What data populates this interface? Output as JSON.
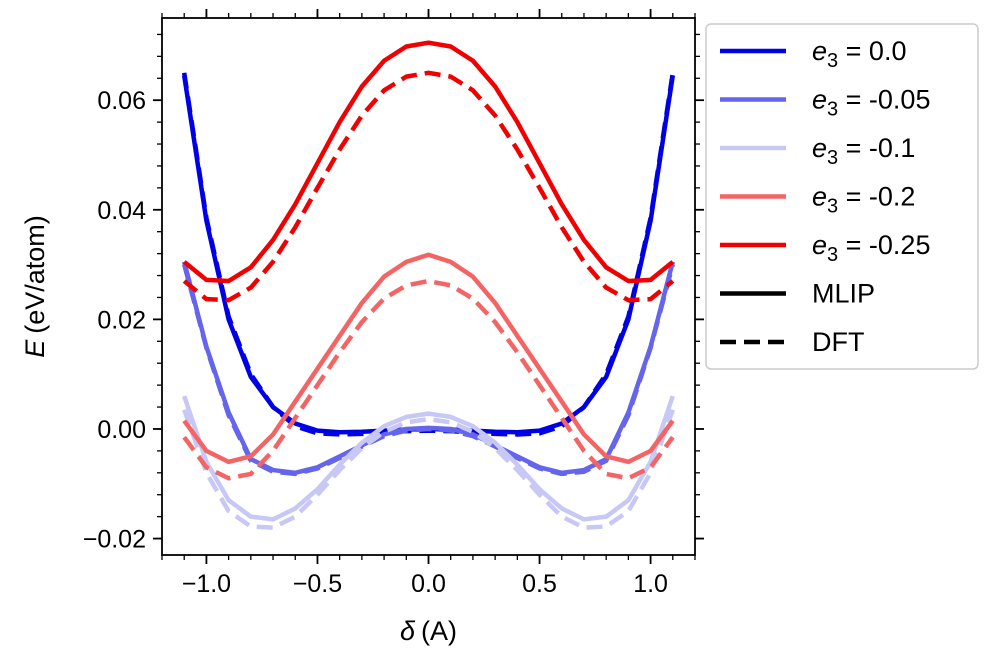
{
  "chart_data": {
    "type": "line",
    "xlabel_symbol": "δ",
    "xlabel_unit": "(A)",
    "ylabel_symbol": "E",
    "ylabel_unit": "(eV/atom)",
    "xlim": [
      -1.2,
      1.2
    ],
    "ylim": [
      -0.023,
      0.075
    ],
    "x_ticks": [
      -1.0,
      -0.5,
      0.0,
      0.5,
      1.0
    ],
    "x_tick_labels": [
      "−1.0",
      "−0.5",
      "0.0",
      "0.5",
      "1.0"
    ],
    "y_ticks": [
      -0.02,
      0.0,
      0.02,
      0.04,
      0.06
    ],
    "y_tick_labels": [
      "−0.02",
      "0.00",
      "0.02",
      "0.04",
      "0.06"
    ],
    "x": [
      -1.1,
      -1.0,
      -0.9,
      -0.8,
      -0.7,
      -0.6,
      -0.5,
      -0.4,
      -0.3,
      -0.2,
      -0.1,
      0.0,
      0.1,
      0.2,
      0.3,
      0.4,
      0.5,
      0.6,
      0.7,
      0.8,
      0.9,
      1.0,
      1.1
    ],
    "series": [
      {
        "name": "e3 = 0.0",
        "legend_var": "e",
        "legend_sub": "3",
        "legend_value": " = 0.0",
        "color": "#0000e6",
        "method": "MLIP",
        "values": [
          0.0645,
          0.038,
          0.02,
          0.0095,
          0.004,
          0.001,
          -0.0003,
          -0.0006,
          -0.0005,
          -0.0003,
          -0.0001,
          0.0,
          -0.0001,
          -0.0003,
          -0.0005,
          -0.0006,
          -0.0003,
          0.001,
          0.004,
          0.0095,
          0.02,
          0.038,
          0.0645
        ]
      },
      {
        "name": "e3 = 0.0",
        "legend_var": "e",
        "legend_sub": "3",
        "legend_value": " = 0.0",
        "color": "#0000e6",
        "method": "DFT",
        "values": [
          0.065,
          0.0385,
          0.0205,
          0.01,
          0.004,
          0.0005,
          -0.0008,
          -0.001,
          -0.0009,
          -0.0006,
          -0.0004,
          -0.0003,
          -0.0004,
          -0.0006,
          -0.0009,
          -0.001,
          -0.0008,
          0.0005,
          0.004,
          0.01,
          0.0205,
          0.0385,
          0.065
        ]
      },
      {
        "name": "e3 = -0.05",
        "legend_var": "e",
        "legend_sub": "3",
        "legend_value": " = -0.05",
        "color": "#6464ec",
        "method": "MLIP",
        "values": [
          0.0305,
          0.015,
          0.003,
          -0.0055,
          -0.0075,
          -0.008,
          -0.007,
          -0.005,
          -0.003,
          -0.001,
          0.0,
          0.0002,
          0.0,
          -0.001,
          -0.003,
          -0.005,
          -0.007,
          -0.008,
          -0.0075,
          -0.0055,
          0.003,
          0.015,
          0.0305
        ]
      },
      {
        "name": "e3 = -0.05",
        "legend_var": "e",
        "legend_sub": "3",
        "legend_value": " = -0.05",
        "color": "#6464ec",
        "method": "DFT",
        "values": [
          0.03,
          0.0148,
          0.0025,
          -0.0058,
          -0.0078,
          -0.0082,
          -0.0072,
          -0.0053,
          -0.0032,
          -0.0013,
          -0.0003,
          0.0,
          -0.0003,
          -0.0013,
          -0.0032,
          -0.0053,
          -0.0072,
          -0.0082,
          -0.0078,
          -0.0058,
          0.0025,
          0.0148,
          0.03
        ]
      },
      {
        "name": "e3 = -0.1",
        "legend_var": "e",
        "legend_sub": "3",
        "legend_value": " = -0.1",
        "color": "#c8c8f6",
        "method": "MLIP",
        "values": [
          0.006,
          -0.006,
          -0.013,
          -0.016,
          -0.0165,
          -0.0145,
          -0.011,
          -0.0065,
          -0.0025,
          0.0005,
          0.0022,
          0.0028,
          0.0022,
          0.0005,
          -0.0025,
          -0.0065,
          -0.011,
          -0.0145,
          -0.0165,
          -0.016,
          -0.013,
          -0.006,
          0.006
        ]
      },
      {
        "name": "e3 = -0.1",
        "legend_var": "e",
        "legend_sub": "3",
        "legend_value": " = -0.1",
        "color": "#c8c8f6",
        "method": "DFT",
        "values": [
          0.0035,
          -0.008,
          -0.015,
          -0.0178,
          -0.018,
          -0.016,
          -0.012,
          -0.0075,
          -0.0035,
          -0.0005,
          0.0012,
          0.0018,
          0.0012,
          -0.0005,
          -0.0035,
          -0.0075,
          -0.012,
          -0.016,
          -0.018,
          -0.0178,
          -0.015,
          -0.008,
          0.0035
        ]
      },
      {
        "name": "e3 = -0.2",
        "legend_var": "e",
        "legend_sub": "3",
        "legend_value": " = -0.2",
        "color": "#f46464",
        "method": "MLIP",
        "values": [
          0.0015,
          -0.004,
          -0.006,
          -0.005,
          -0.001,
          0.005,
          0.011,
          0.017,
          0.023,
          0.0278,
          0.0305,
          0.0318,
          0.0305,
          0.0278,
          0.023,
          0.017,
          0.011,
          0.005,
          -0.001,
          -0.005,
          -0.006,
          -0.004,
          0.0015
        ]
      },
      {
        "name": "e3 = -0.2",
        "legend_var": "e",
        "legend_sub": "3",
        "legend_value": " = -0.2",
        "color": "#f46464",
        "method": "DFT",
        "values": [
          -0.0015,
          -0.007,
          -0.009,
          -0.0082,
          -0.004,
          0.002,
          0.008,
          0.014,
          0.0195,
          0.0238,
          0.0262,
          0.027,
          0.0262,
          0.0238,
          0.0195,
          0.014,
          0.008,
          0.002,
          -0.004,
          -0.0082,
          -0.009,
          -0.007,
          -0.0015
        ]
      },
      {
        "name": "e3 = -0.25",
        "legend_var": "e",
        "legend_sub": "3",
        "legend_value": " = -0.25",
        "color": "#f00000",
        "method": "MLIP",
        "values": [
          0.0305,
          0.0272,
          0.027,
          0.0295,
          0.0345,
          0.041,
          0.0485,
          0.056,
          0.0625,
          0.0672,
          0.0698,
          0.0705,
          0.0698,
          0.0672,
          0.0625,
          0.056,
          0.0485,
          0.041,
          0.0345,
          0.0295,
          0.027,
          0.0272,
          0.0305
        ]
      },
      {
        "name": "e3 = -0.25",
        "legend_var": "e",
        "legend_sub": "3",
        "legend_value": " = -0.25",
        "color": "#f00000",
        "method": "DFT",
        "values": [
          0.027,
          0.0237,
          0.0235,
          0.0258,
          0.0305,
          0.0368,
          0.044,
          0.051,
          0.0572,
          0.0618,
          0.0643,
          0.065,
          0.0643,
          0.0618,
          0.0572,
          0.051,
          0.044,
          0.0368,
          0.0305,
          0.0258,
          0.0235,
          0.0237,
          0.027
        ]
      }
    ],
    "legend": [
      {
        "var": "e",
        "sub": "3",
        "value": " = 0.0",
        "color": "#0000e6",
        "style": "solid"
      },
      {
        "var": "e",
        "sub": "3",
        "value": " = -0.05",
        "color": "#6464ec",
        "style": "solid"
      },
      {
        "var": "e",
        "sub": "3",
        "value": " = -0.1",
        "color": "#c8c8f6",
        "style": "solid"
      },
      {
        "var": "e",
        "sub": "3",
        "value": " = -0.2",
        "color": "#f46464",
        "style": "solid"
      },
      {
        "var": "e",
        "sub": "3",
        "value": " = -0.25",
        "color": "#f00000",
        "style": "solid"
      },
      {
        "var": "",
        "sub": "",
        "value": "MLIP",
        "color": "#000000",
        "style": "solid"
      },
      {
        "var": "",
        "sub": "",
        "value": "DFT",
        "color": "#000000",
        "style": "dashed"
      }
    ],
    "legend_position": "outside-upper-right",
    "grid": false
  }
}
